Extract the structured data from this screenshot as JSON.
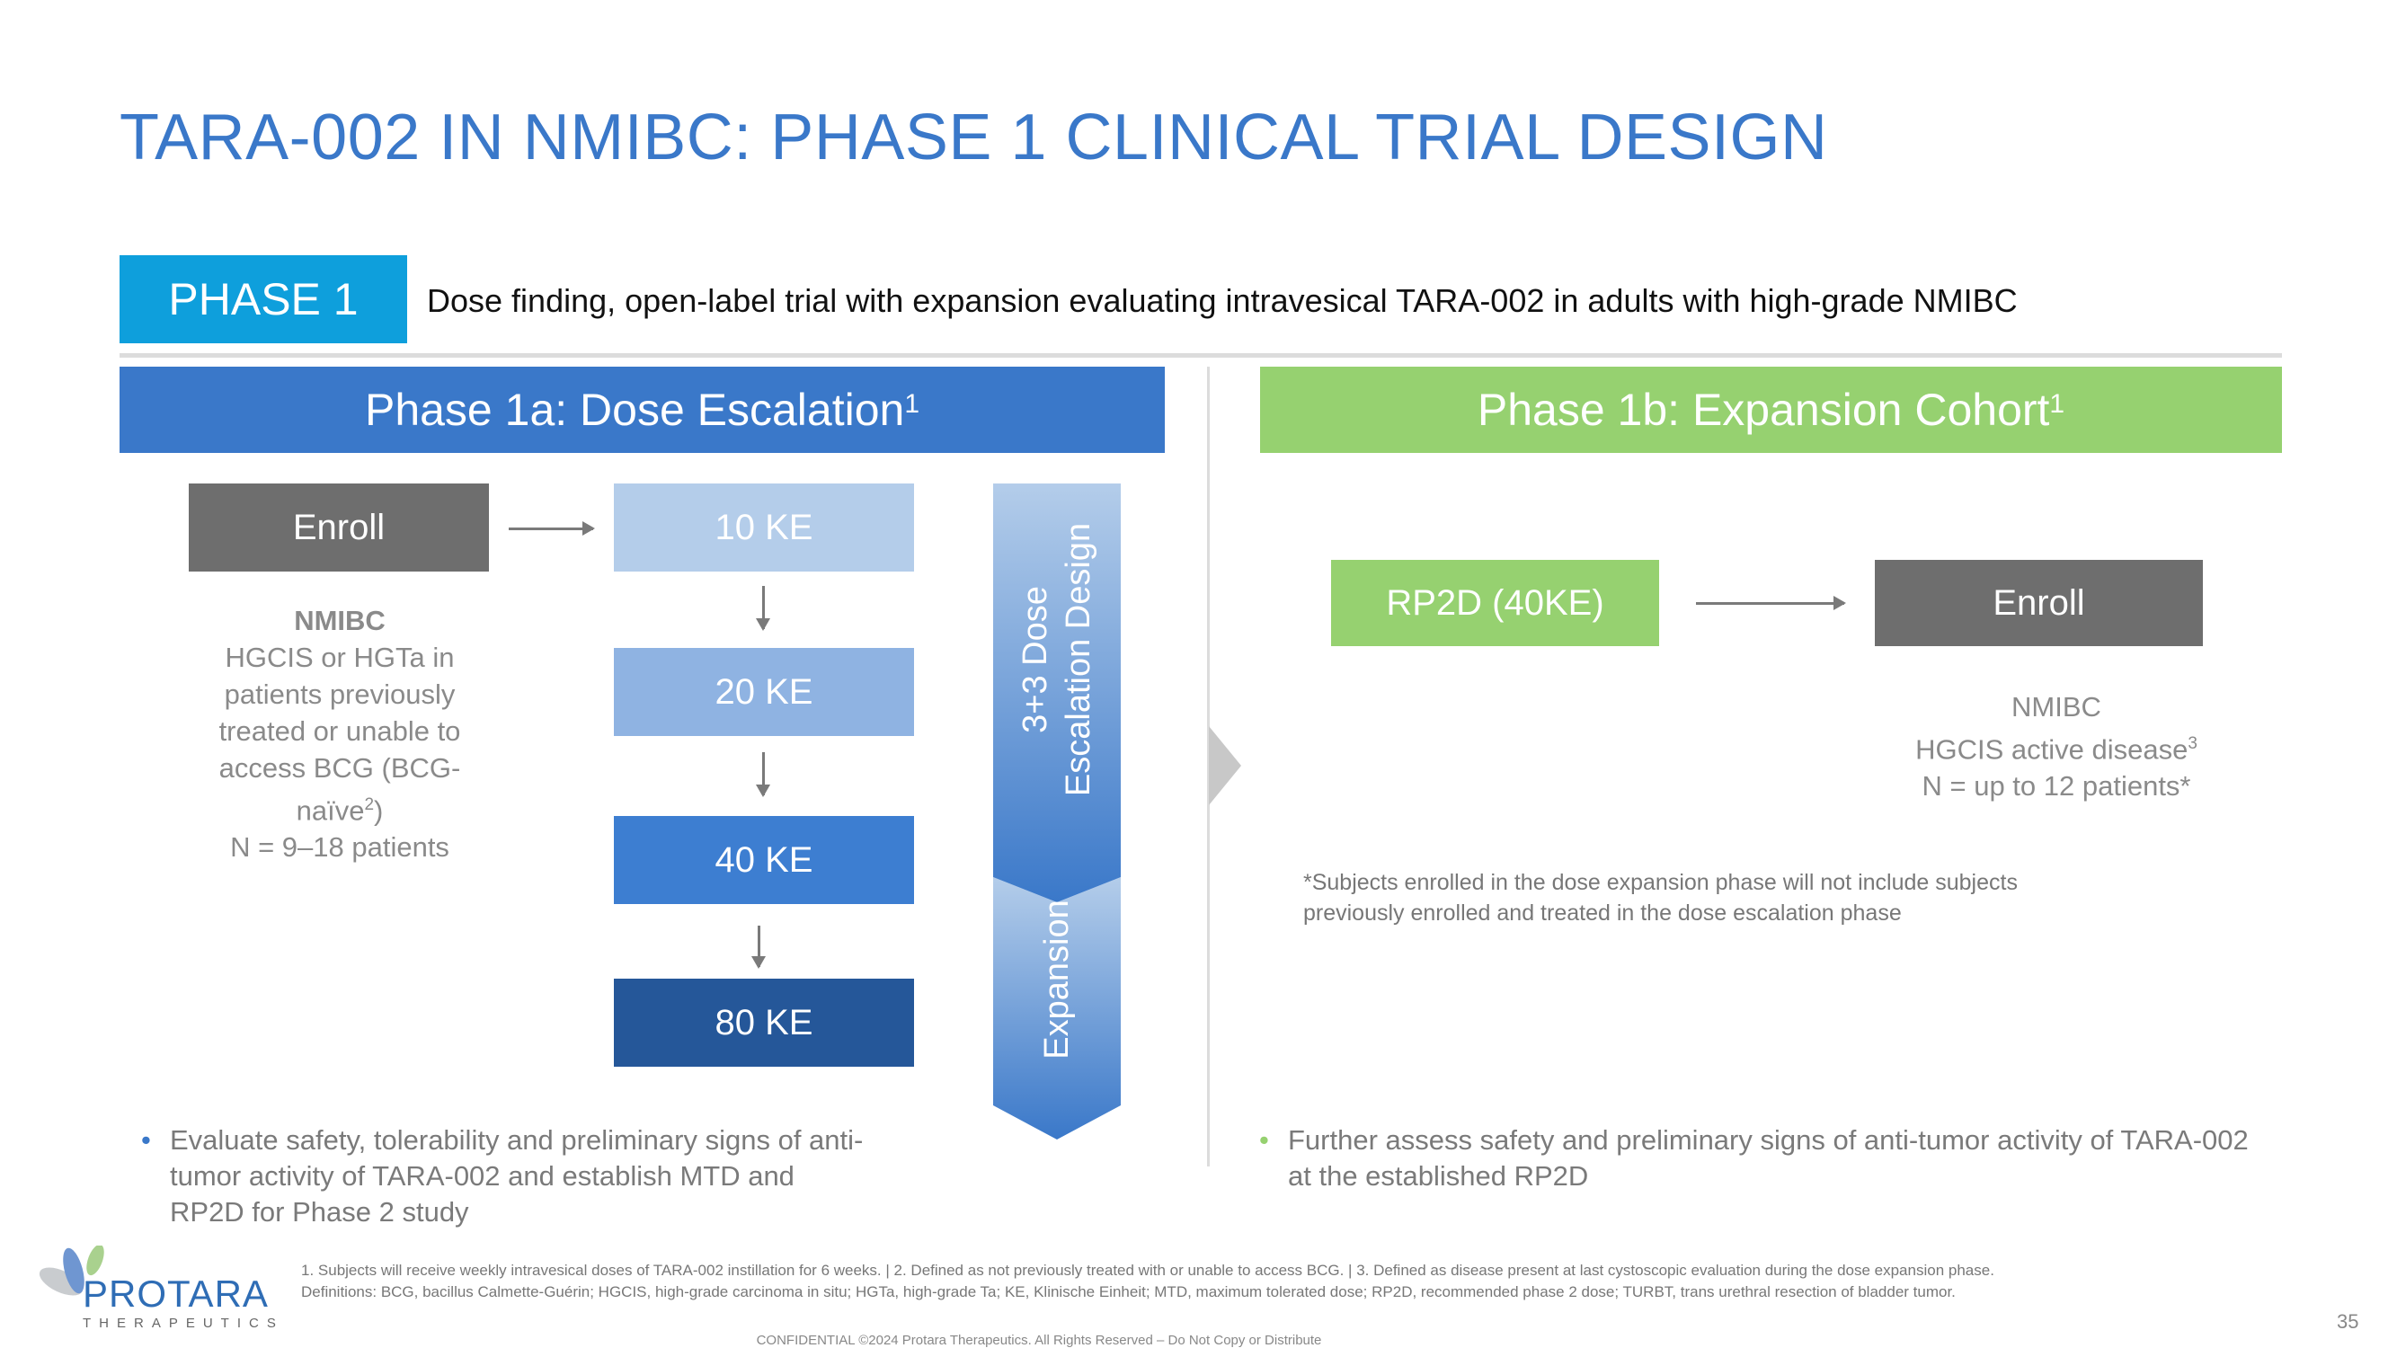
{
  "title": "TARA-002 IN NMIBC: PHASE 1 CLINICAL TRIAL DESIGN",
  "phase_badge": "PHASE 1",
  "description": "Dose finding, open-label trial with expansion evaluating intravesical TARA-002 in adults with high-grade NMIBC",
  "phase1a": {
    "header": "Phase 1a: Dose Escalation",
    "header_sup": "1",
    "enroll": "Enroll",
    "doses": [
      "10 KE",
      "20 KE",
      "40 KE",
      "80 KE"
    ],
    "population": {
      "heading": "NMIBC",
      "lines": [
        "HGCIS or HGTa in",
        "patients previously",
        "treated or unable to",
        "access BCG (BCG-"
      ],
      "naive": "naïve",
      "naive_sup": "2",
      "naive_close": ")",
      "n": "N = 9–18 patients"
    },
    "design_label_1": "3+3 Dose",
    "design_label_2": "Escalation Design",
    "expansion_label": "Expansion",
    "bullet": "Evaluate safety, tolerability and preliminary signs of anti-tumor activity of TARA-002 and establish MTD and RP2D for Phase 2 study"
  },
  "phase1b": {
    "header": "Phase 1b: Expansion Cohort",
    "header_sup": "1",
    "rp2d": "RP2D (40KE)",
    "enroll": "Enroll",
    "population": {
      "heading": "NMIBC",
      "line2": "HGCIS active disease",
      "line2_sup": "3",
      "n": "N = up to 12 patients*"
    },
    "note": "*Subjects enrolled in the dose expansion phase will not include subjects previously enrolled and treated in the dose escalation phase",
    "bullet": "Further assess safety and preliminary signs of anti-tumor activity of TARA-002 at the established RP2D"
  },
  "footnotes": [
    "1. Subjects will receive weekly intravesical doses of TARA-002 instillation for 6 weeks. | 2. Defined as not previously treated with or unable to access BCG. | 3. Defined as disease present at last cystoscopic evaluation during the dose expansion phase.",
    "Definitions: BCG, bacillus Calmette-Guérin; HGCIS, high-grade carcinoma in situ; HGTa, high-grade Ta; KE, Klinische Einheit; MTD, maximum tolerated dose; RP2D, recommended phase 2 dose; TURBT, trans urethral resection of bladder tumor."
  ],
  "confidential": "CONFIDENTIAL ©2024 Protara Therapeutics. All Rights Reserved – Do Not Copy or Distribute",
  "page_number": "35",
  "logo": {
    "name": "PROTARA",
    "tagline": "THERAPEUTICS"
  },
  "colors": {
    "title": "#3a78c9",
    "badge": "#0e9fdc",
    "phase1a": "#3a78c9",
    "phase1b": "#96d170",
    "enroll": "#6e6e6e"
  }
}
